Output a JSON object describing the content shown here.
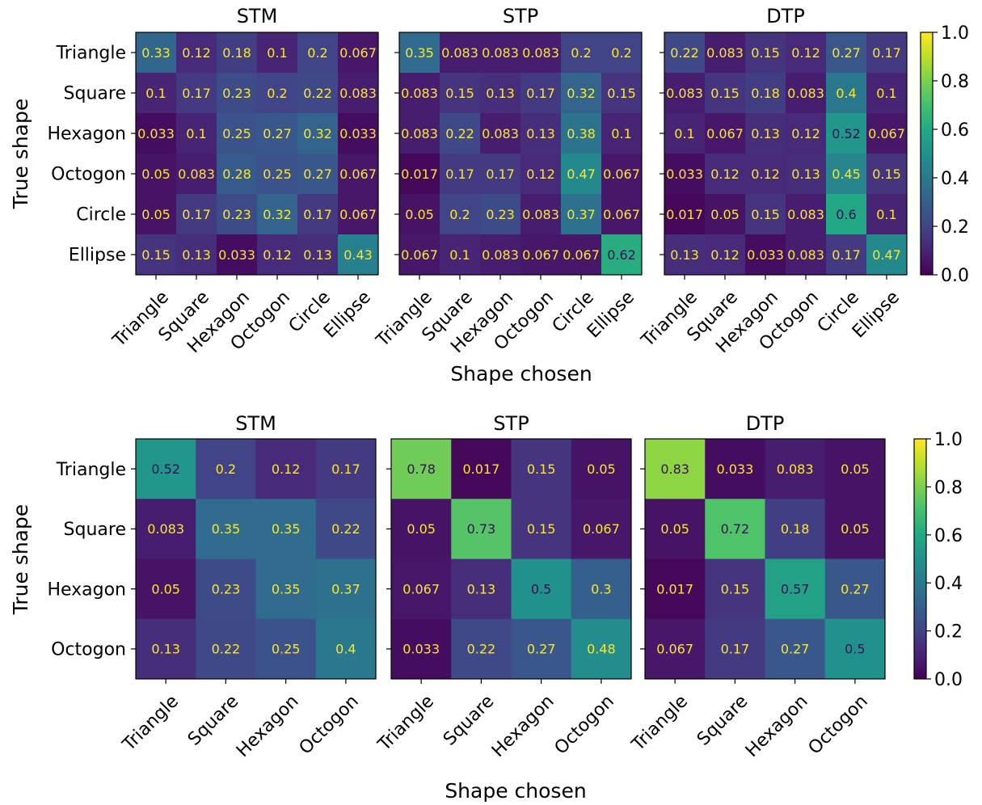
{
  "chart_data": [
    {
      "type": "heatmap",
      "xlabel": "Shape chosen",
      "ylabel": "True shape",
      "categories": [
        "Triangle",
        "Square",
        "Hexagon",
        "Octogon",
        "Circle",
        "Ellipse"
      ],
      "colorbar": {
        "min": 0.0,
        "max": 1.0,
        "ticks": [
          "0.0",
          "0.2",
          "0.4",
          "0.6",
          "0.8",
          "1.0"
        ]
      },
      "colormap": "viridis",
      "panels": [
        {
          "title": "STM",
          "values": [
            [
              "0.33",
              "0.12",
              "0.18",
              "0.1",
              "0.2",
              "0.067"
            ],
            [
              "0.1",
              "0.17",
              "0.23",
              "0.2",
              "0.22",
              "0.083"
            ],
            [
              "0.033",
              "0.1",
              "0.25",
              "0.27",
              "0.32",
              "0.033"
            ],
            [
              "0.05",
              "0.083",
              "0.28",
              "0.25",
              "0.27",
              "0.067"
            ],
            [
              "0.05",
              "0.17",
              "0.23",
              "0.32",
              "0.17",
              "0.067"
            ],
            [
              "0.15",
              "0.13",
              "0.033",
              "0.12",
              "0.13",
              "0.43"
            ]
          ]
        },
        {
          "title": "STP",
          "values": [
            [
              "0.35",
              "0.083",
              "0.083",
              "0.083",
              "0.2",
              "0.2"
            ],
            [
              "0.083",
              "0.15",
              "0.13",
              "0.17",
              "0.32",
              "0.15"
            ],
            [
              "0.083",
              "0.22",
              "0.083",
              "0.13",
              "0.38",
              "0.1"
            ],
            [
              "0.017",
              "0.17",
              "0.17",
              "0.12",
              "0.47",
              "0.067"
            ],
            [
              "0.05",
              "0.2",
              "0.23",
              "0.083",
              "0.37",
              "0.067"
            ],
            [
              "0.067",
              "0.1",
              "0.083",
              "0.067",
              "0.067",
              "0.62"
            ]
          ]
        },
        {
          "title": "DTP",
          "values": [
            [
              "0.22",
              "0.083",
              "0.15",
              "0.12",
              "0.27",
              "0.17"
            ],
            [
              "0.083",
              "0.15",
              "0.18",
              "0.083",
              "0.4",
              "0.1"
            ],
            [
              "0.1",
              "0.067",
              "0.13",
              "0.12",
              "0.52",
              "0.067"
            ],
            [
              "0.033",
              "0.12",
              "0.12",
              "0.13",
              "0.45",
              "0.15"
            ],
            [
              "0.017",
              "0.05",
              "0.15",
              "0.083",
              "0.6",
              "0.1"
            ],
            [
              "0.13",
              "0.12",
              "0.033",
              "0.083",
              "0.17",
              "0.47"
            ]
          ]
        }
      ]
    },
    {
      "type": "heatmap",
      "xlabel": "Shape chosen",
      "ylabel": "True shape",
      "categories": [
        "Triangle",
        "Square",
        "Hexagon",
        "Octogon"
      ],
      "colorbar": {
        "min": 0.0,
        "max": 1.0,
        "ticks": [
          "0.0",
          "0.2",
          "0.4",
          "0.6",
          "0.8",
          "1.0"
        ]
      },
      "colormap": "viridis",
      "panels": [
        {
          "title": "STM",
          "values": [
            [
              "0.52",
              "0.2",
              "0.12",
              "0.17"
            ],
            [
              "0.083",
              "0.35",
              "0.35",
              "0.22"
            ],
            [
              "0.05",
              "0.23",
              "0.35",
              "0.37"
            ],
            [
              "0.13",
              "0.22",
              "0.25",
              "0.4"
            ]
          ]
        },
        {
          "title": "STP",
          "values": [
            [
              "0.78",
              "0.017",
              "0.15",
              "0.05"
            ],
            [
              "0.05",
              "0.73",
              "0.15",
              "0.067"
            ],
            [
              "0.067",
              "0.13",
              "0.5",
              "0.3"
            ],
            [
              "0.033",
              "0.22",
              "0.27",
              "0.48"
            ]
          ]
        },
        {
          "title": "DTP",
          "values": [
            [
              "0.83",
              "0.033",
              "0.083",
              "0.05"
            ],
            [
              "0.05",
              "0.72",
              "0.18",
              "0.05"
            ],
            [
              "0.017",
              "0.15",
              "0.57",
              "0.27"
            ],
            [
              "0.067",
              "0.17",
              "0.27",
              "0.5"
            ]
          ]
        }
      ]
    }
  ]
}
